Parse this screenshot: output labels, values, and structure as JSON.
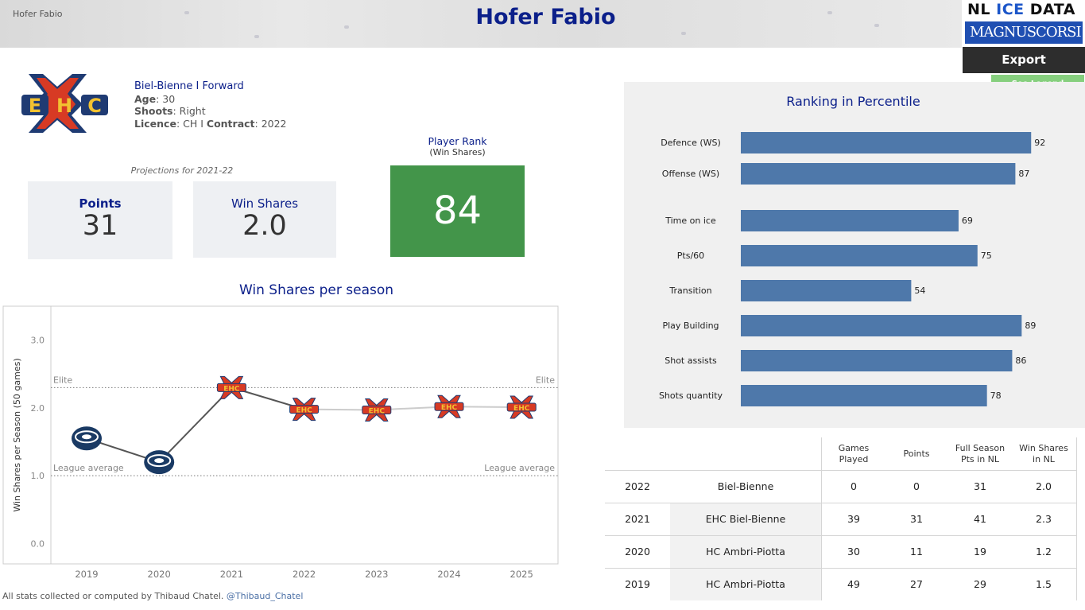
{
  "header": {
    "tab_label": "Hofer Fabio",
    "title": "Hofer Fabio",
    "brand": {
      "line1_a": "NL ",
      "line1_b": "ICE",
      "line1_c": " DATA",
      "line2": "MAGNUSCORSI"
    },
    "export_label": "Export",
    "legend_label": "See Legend"
  },
  "player": {
    "team_position": "Biel-Bienne  I  Forward",
    "age_label": "Age",
    "age": ": 30",
    "shoots_label": "Shoots",
    "shoots": ": Right",
    "licence_label": "Licence",
    "licence": ": CH I ",
    "contract_label": "Contract",
    "contract": ": 2022"
  },
  "projections": {
    "label": "Projections for 2021-22",
    "points_label": "Points",
    "points": "31",
    "ws_label": "Win Shares",
    "ws": "2.0",
    "rank_title": "Player Rank",
    "rank_sub": "(Win Shares)",
    "rank": "84",
    "rank_color": "#43954a"
  },
  "ws_chart": {
    "title": "Win Shares per season",
    "chart_data": {
      "type": "line",
      "title": "Win Shares per season",
      "ylabel": "Win Shares per Season (50 games)",
      "x": [
        "2019",
        "2020",
        "2021",
        "2022",
        "2023",
        "2024",
        "2025"
      ],
      "values": [
        1.55,
        1.2,
        2.3,
        1.98,
        1.97,
        2.02,
        2.01
      ],
      "projected_from_index": 3,
      "ylim": [
        -0.3,
        3.5
      ],
      "yticks": [
        "0.0",
        "1.0",
        "2.0",
        "3.0"
      ],
      "team_icons": [
        "ambri",
        "ambri",
        "biel",
        "biel",
        "biel",
        "biel",
        "biel"
      ],
      "reference_lines": [
        {
          "label": "Elite",
          "value": 2.3
        },
        {
          "label": "League average",
          "value": 1.0
        }
      ],
      "line_color": "#555555",
      "projection_color": "#cccccc"
    }
  },
  "percentile": {
    "title": "Ranking in Percentile",
    "chart_data": {
      "type": "bar",
      "orientation": "horizontal",
      "categories": [
        "Defence (WS)",
        "Offense (WS)",
        "Time on ice",
        "Pts/60",
        "Transition",
        "Play Building",
        "Shot assists",
        "Shots quantity"
      ],
      "values": [
        92,
        87,
        69,
        75,
        54,
        89,
        86,
        78
      ],
      "xlim": [
        0,
        100
      ],
      "bar_color": "#4e78aa"
    }
  },
  "table": {
    "headers": [
      "Games\nPlayed",
      "Points",
      "Full Season\nPts in NL",
      "Win Shares\nin NL"
    ],
    "rows": [
      {
        "season": "2022",
        "team": "Biel-Bienne",
        "gp": "0",
        "pts": "0",
        "full": "31",
        "ws": "2.0"
      },
      {
        "season": "2021",
        "team": "EHC Biel-Bienne",
        "gp": "39",
        "pts": "31",
        "full": "41",
        "ws": "2.3"
      },
      {
        "season": "2020",
        "team": "HC Ambri-Piotta",
        "gp": "30",
        "pts": "11",
        "full": "19",
        "ws": "1.2"
      },
      {
        "season": "2019",
        "team": "HC Ambri-Piotta",
        "gp": "49",
        "pts": "27",
        "full": "29",
        "ws": "1.5"
      }
    ]
  },
  "footer": {
    "text": "All stats collected or computed by Thibaud Chatel. ",
    "handle": "@Thibaud_Chatel"
  }
}
